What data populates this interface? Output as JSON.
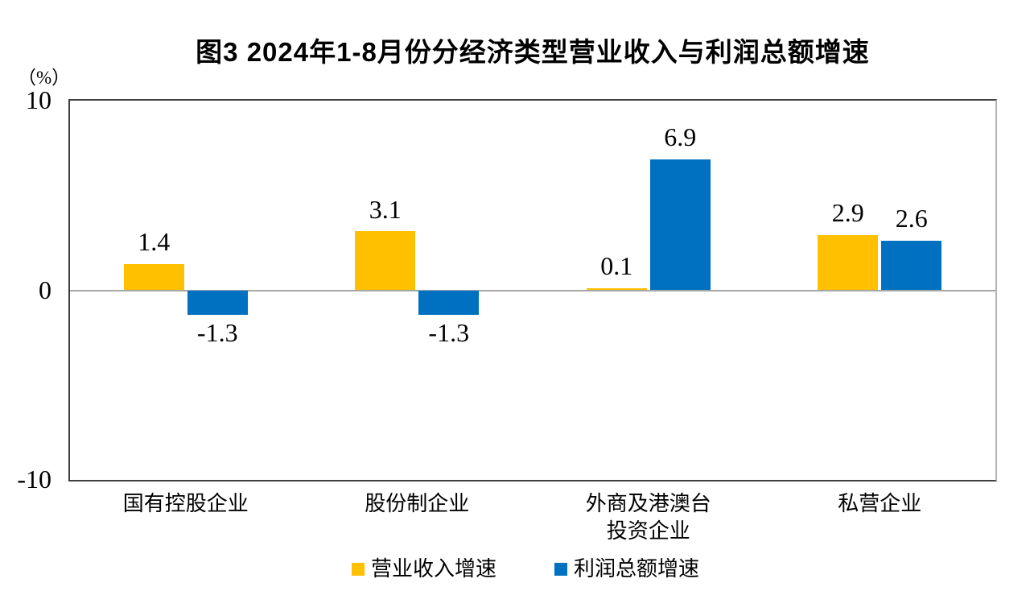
{
  "title": "图3  2024年1-8月份分经济类型营业收入与利润总额增速",
  "chart_data": {
    "type": "bar",
    "title": "图3  2024年1-8月份分经济类型营业收入与利润总额增速",
    "unit_label": "（%）",
    "categories": [
      "国有控股企业",
      "股份制企业",
      "外商及港澳台\n投资企业",
      "私营企业"
    ],
    "series": [
      {
        "name": "营业收入增速",
        "color": "#FFC000",
        "values": [
          1.4,
          3.1,
          0.1,
          2.9
        ]
      },
      {
        "name": "利润总额增速",
        "color": "#0070C0",
        "values": [
          -1.3,
          -1.3,
          6.9,
          2.6
        ]
      }
    ],
    "value_label_format": "one_decimal",
    "ylim": [
      -10,
      10
    ],
    "yticks": [
      10,
      0,
      -10
    ],
    "grid": false,
    "zero_line": true,
    "zero_line_color": "#a6a6a6",
    "legend_position": "bottom"
  }
}
